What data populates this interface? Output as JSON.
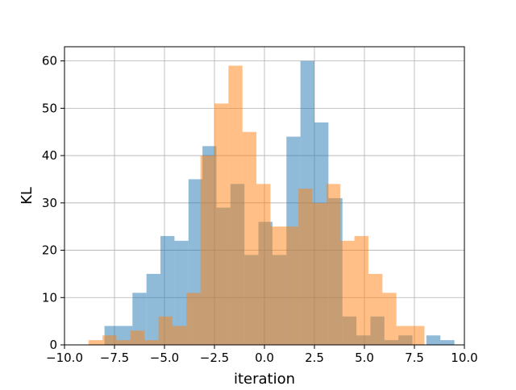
{
  "chart_data": {
    "type": "histogram",
    "title": "",
    "xlabel": "iteration",
    "ylabel": "KL",
    "xlim": [
      -10.0,
      10.0
    ],
    "ylim": [
      0,
      63
    ],
    "x_ticks": [
      "−10.0",
      "−7.5",
      "−5.0",
      "−2.5",
      "0.0",
      "2.5",
      "5.0",
      "7.5",
      "10.0"
    ],
    "x_tick_values": [
      -10.0,
      -7.5,
      -5.0,
      -2.5,
      0.0,
      2.5,
      5.0,
      7.5,
      10.0
    ],
    "y_ticks": [
      "0",
      "10",
      "20",
      "30",
      "40",
      "50",
      "60"
    ],
    "y_tick_values": [
      0,
      10,
      20,
      30,
      40,
      50,
      60
    ],
    "grid": true,
    "series": [
      {
        "color": "#1f77b4",
        "alpha": 0.5,
        "bin_edges": [
          -8.0,
          -7.3,
          -6.6,
          -5.9,
          -5.2,
          -4.5,
          -3.8,
          -3.1,
          -2.4,
          -1.7,
          -1.0,
          -0.3,
          0.4,
          1.1,
          1.8,
          2.5,
          3.2,
          3.9,
          4.6,
          5.3,
          6.0,
          6.7,
          7.4,
          8.1,
          8.8,
          9.5
        ],
        "counts": [
          4,
          4,
          11,
          15,
          23,
          22,
          35,
          42,
          29,
          34,
          19,
          26,
          19,
          44,
          60,
          47,
          31,
          6,
          2,
          6,
          1,
          2,
          0,
          2,
          1
        ]
      },
      {
        "color": "#ff7f0e",
        "alpha": 0.5,
        "bin_edges": [
          -8.8,
          -8.1,
          -7.4,
          -6.7,
          -6.0,
          -5.3,
          -4.6,
          -3.9,
          -3.2,
          -2.5,
          -1.8,
          -1.1,
          -0.4,
          0.3,
          1.0,
          1.7,
          2.4,
          3.1,
          3.8,
          4.5,
          5.2,
          5.9,
          6.6,
          7.3,
          8.0
        ],
        "counts": [
          1,
          2,
          1,
          3,
          1,
          6,
          4,
          11,
          40,
          51,
          59,
          45,
          34,
          25,
          25,
          33,
          30,
          34,
          22,
          23,
          15,
          11,
          4,
          4
        ]
      }
    ]
  }
}
